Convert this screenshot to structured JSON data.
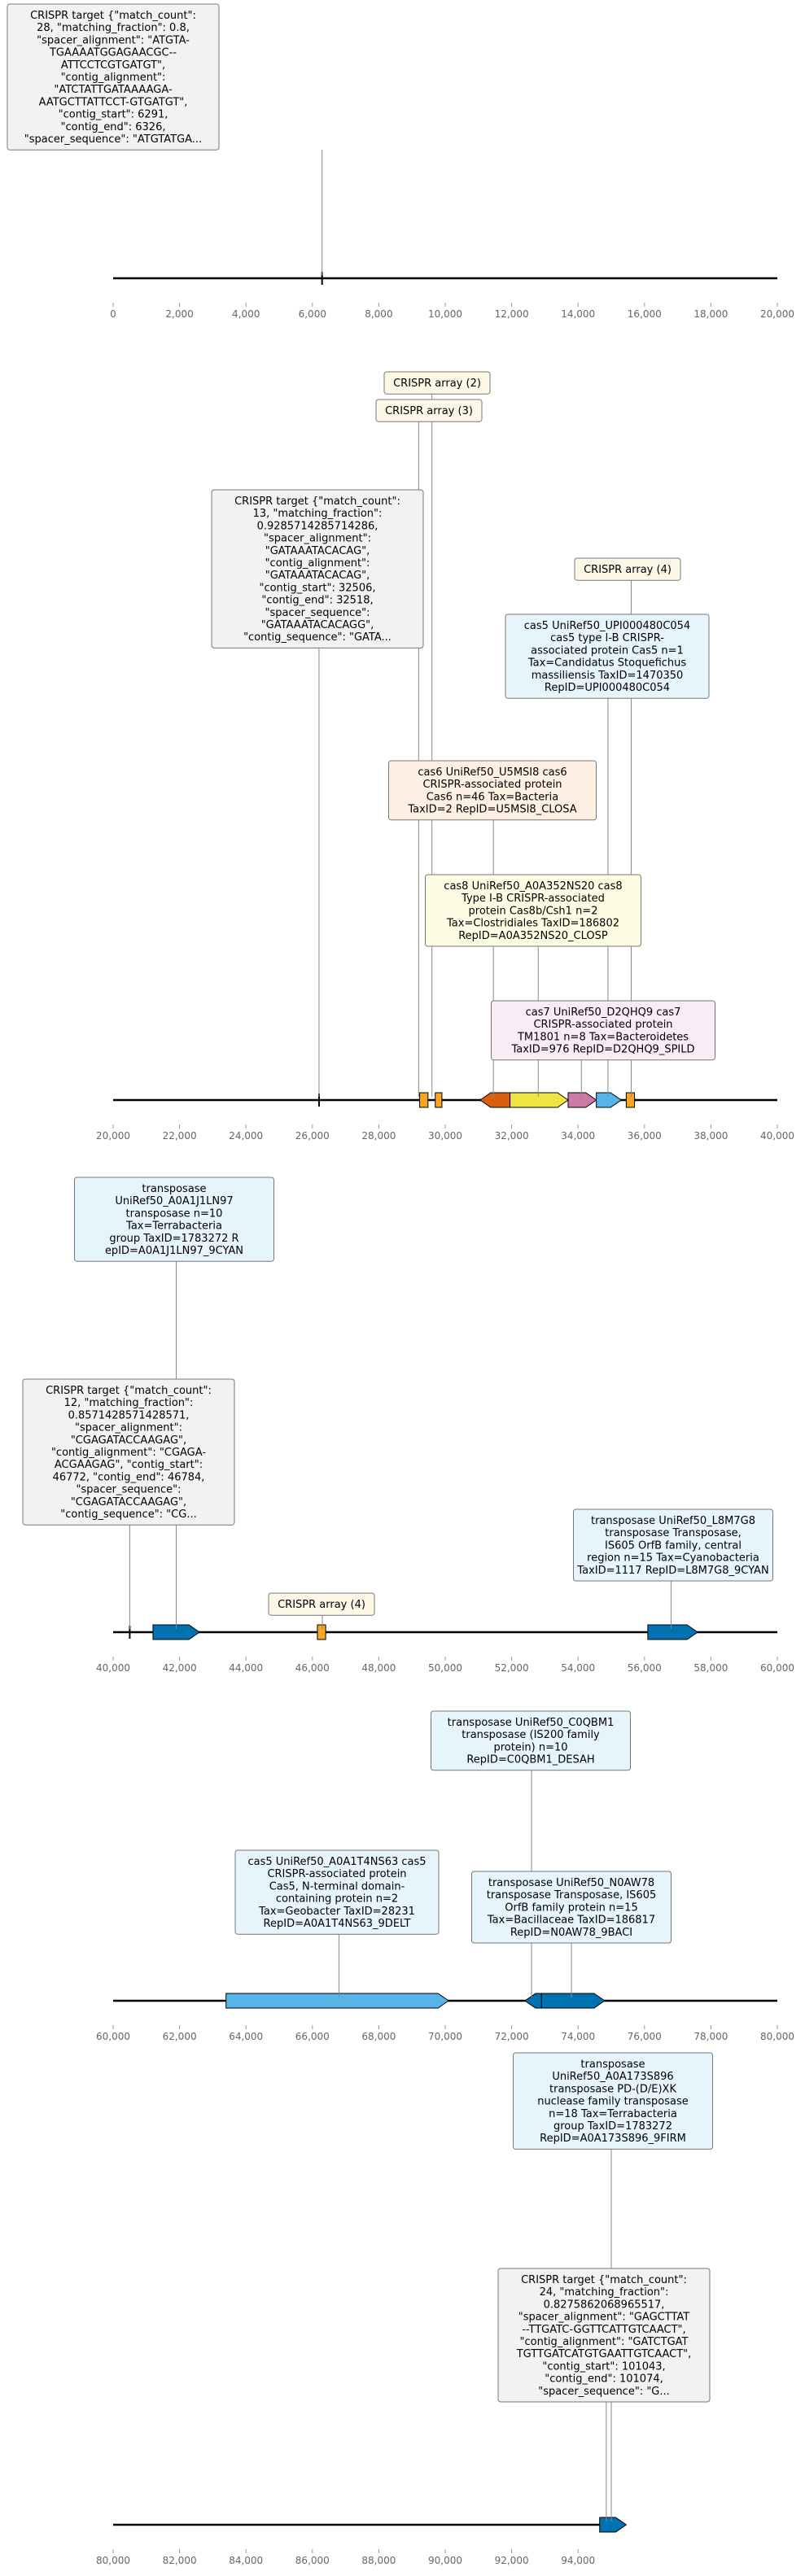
{
  "colors": {
    "crispr_target": "#f2f2f2",
    "crispr_array": "#fdf7e6",
    "cas5": "#e6f4fb",
    "cas6": "#fdf0e3",
    "cas8": "#fdfde3",
    "cas7": "#f9ecf4",
    "transposase": "#e6f4fb",
    "gene_orange": "#f5a623",
    "gene_darkorange": "#d95f0e",
    "gene_yellow": "#f0e442",
    "gene_pink": "#cc79a7",
    "gene_lightblue": "#56b4e9",
    "gene_blue": "#0072b2"
  },
  "tracks": [
    {
      "ticks": [
        "0",
        "2,000",
        "4,000",
        "6,000",
        "8,000",
        "10,000",
        "12,000",
        "14,000",
        "16,000",
        "18,000",
        "20,000"
      ],
      "features": [
        {
          "kind": "mark",
          "pos": 6291,
          "name": "crispr-target-mark"
        }
      ],
      "labels": [
        {
          "kind": "crispr_target",
          "anchor": 6291,
          "lines": [
            "CRISPR target {\"match_count\":",
            "28, \"matching_fraction\": 0.8,",
            "\"spacer_alignment\": \"ATGTA-",
            "TGAAAATGGAGAACGC--",
            "ATTCCTCGTGATGT\",",
            "\"contig_alignment\":",
            "\"ATCTATTGATAAAAGA-",
            "AATGCTTATTCCT-GTGATGT\",",
            "\"contig_start\": 6291,",
            "\"contig_end\": 6326,",
            "\"spacer_sequence\": \"ATGTATGA..."
          ]
        }
      ]
    },
    {
      "ticks": [
        "20,000",
        "22,000",
        "24,000",
        "26,000",
        "28,000",
        "30,000",
        "32,000",
        "34,000",
        "36,000",
        "38,000",
        "40,000"
      ],
      "features": [
        {
          "kind": "mark",
          "pos": 26200,
          "name": "crispr-target-mark"
        },
        {
          "kind": "array",
          "start": 29230,
          "end": 29480,
          "color": "gene_orange"
        },
        {
          "kind": "array",
          "start": 29700,
          "end": 29900,
          "color": "gene_orange"
        },
        {
          "kind": "gene",
          "start": 31050,
          "end": 31950,
          "strand": -1,
          "color": "gene_darkorange"
        },
        {
          "kind": "gene",
          "start": 31950,
          "end": 33700,
          "strand": 1,
          "color": "gene_yellow"
        },
        {
          "kind": "gene",
          "start": 33700,
          "end": 34550,
          "strand": 1,
          "color": "gene_pink"
        },
        {
          "kind": "gene",
          "start": 34550,
          "end": 35300,
          "strand": 1,
          "color": "gene_lightblue"
        },
        {
          "kind": "array",
          "start": 35450,
          "end": 35700,
          "color": "gene_orange"
        }
      ],
      "labels": [
        {
          "kind": "crispr_array",
          "anchor": 29600,
          "lines": [
            "CRISPR array (2)"
          ]
        },
        {
          "kind": "crispr_array",
          "anchor": 29200,
          "lines": [
            "CRISPR array (3)"
          ]
        },
        {
          "kind": "crispr_target",
          "anchor": 26200,
          "lines": [
            "CRISPR target {\"match_count\":",
            "13, \"matching_fraction\":",
            "0.9285714285714286,",
            "\"spacer_alignment\":",
            "\"GATAAATACACAG\",",
            "\"contig_alignment\":",
            "\"GATAAATACACAG\",",
            "\"contig_start\": 32506,",
            "\"contig_end\": 32518,",
            "\"spacer_sequence\":",
            "\"GATAAATACACAGG\",",
            "\"contig_sequence\": \"GATA..."
          ]
        },
        {
          "kind": "crispr_array",
          "anchor": 35600,
          "lines": [
            "CRISPR array (4)"
          ]
        },
        {
          "kind": "cas5",
          "anchor": 34900,
          "lines": [
            "cas5 UniRef50_UPI000480C054",
            "cas5 type I-B CRISPR-",
            "associated protein Cas5 n=1",
            "Tax=Candidatus Stoquefichus",
            "massiliensis TaxID=1470350",
            "RepID=UPI000480C054"
          ]
        },
        {
          "kind": "cas6",
          "anchor": 31450,
          "lines": [
            "cas6 UniRef50_U5MSI8 cas6",
            "CRISPR-associated protein",
            "Cas6 n=46 Tax=Bacteria",
            "TaxID=2 RepID=U5MSI8_CLOSA"
          ]
        },
        {
          "kind": "cas8",
          "anchor": 32800,
          "lines": [
            "cas8 UniRef50_A0A352NS20 cas8",
            "Type I-B CRISPR-associated",
            "protein Cas8b/Csh1 n=2",
            "Tax=Clostridiales TaxID=186802",
            "RepID=A0A352NS20_CLOSP"
          ]
        },
        {
          "kind": "cas7",
          "anchor": 34100,
          "lines": [
            "cas7 UniRef50_D2QHQ9 cas7",
            "CRISPR-associated protein",
            "TM1801 n=8 Tax=Bacteroidetes",
            "TaxID=976 RepID=D2QHQ9_SPILD"
          ]
        }
      ]
    },
    {
      "ticks": [
        "40,000",
        "42,000",
        "44,000",
        "46,000",
        "48,000",
        "50,000",
        "52,000",
        "54,000",
        "56,000",
        "58,000",
        "60,000"
      ],
      "features": [
        {
          "kind": "mark",
          "pos": 40500,
          "name": "crispr-target-mark"
        },
        {
          "kind": "gene",
          "start": 41200,
          "end": 42600,
          "strand": 1,
          "color": "gene_blue"
        },
        {
          "kind": "array",
          "start": 46150,
          "end": 46400,
          "color": "gene_orange"
        },
        {
          "kind": "gene",
          "start": 56100,
          "end": 57600,
          "strand": 1,
          "color": "gene_blue"
        }
      ],
      "labels": [
        {
          "kind": "transposase",
          "anchor": 41900,
          "lines": [
            "transposase",
            "UniRef50_A0A1J1LN97",
            "transposase n=10",
            "Tax=Terrabacteria",
            "group TaxID=1783272 R",
            "epID=A0A1J1LN97_9CYAN"
          ]
        },
        {
          "kind": "crispr_target",
          "anchor": 40500,
          "lines": [
            "CRISPR target {\"match_count\":",
            "12, \"matching_fraction\":",
            "0.8571428571428571,",
            "\"spacer_alignment\":",
            "\"CGAGATACCAAGAG\",",
            "\"contig_alignment\": \"CGAGA-",
            "ACGAAGAG\", \"contig_start\":",
            "46772, \"contig_end\": 46784,",
            "\"spacer_sequence\":",
            "\"CGAGATACCAAGAG\",",
            "\"contig_sequence\": \"CG..."
          ]
        },
        {
          "kind": "transposase",
          "anchor": 56800,
          "lines": [
            "transposase UniRef50_L8M7G8",
            "transposase Transposase,",
            "IS605 OrfB family, central",
            "region n=15 Tax=Cyanobacteria",
            "TaxID=1117 RepID=L8M7G8_9CYAN"
          ]
        },
        {
          "kind": "crispr_array",
          "anchor": 46300,
          "lines": [
            "CRISPR array (4)"
          ]
        }
      ]
    },
    {
      "ticks": [
        "60,000",
        "62,000",
        "64,000",
        "66,000",
        "68,000",
        "70,000",
        "72,000",
        "74,000",
        "76,000",
        "78,000",
        "80,000"
      ],
      "features": [
        {
          "kind": "gene",
          "start": 63400,
          "end": 70100,
          "strand": 1,
          "color": "gene_lightblue"
        },
        {
          "kind": "gene",
          "start": 72400,
          "end": 72900,
          "strand": -1,
          "color": "gene_blue"
        },
        {
          "kind": "gene",
          "start": 72900,
          "end": 74800,
          "strand": 1,
          "color": "gene_blue"
        }
      ],
      "labels": [
        {
          "kind": "transposase",
          "anchor": 72600,
          "lines": [
            "transposase UniRef50_C0QBM1",
            "transposase (IS200 family",
            "protein) n=10",
            "RepID=C0QBM1_DESAH"
          ]
        },
        {
          "kind": "cas5",
          "anchor": 66800,
          "lines": [
            "cas5 UniRef50_A0A1T4NS63 cas5",
            "CRISPR-associated protein",
            "Cas5, N-terminal domain-",
            "containing protein n=2",
            "Tax=Geobacter TaxID=28231",
            "RepID=A0A1T4NS63_9DELT"
          ]
        },
        {
          "kind": "transposase",
          "anchor": 73800,
          "lines": [
            "transposase UniRef50_N0AW78",
            "transposase Transposase, IS605",
            "OrfB family protein n=15",
            "Tax=Bacillaceae TaxID=186817",
            "RepID=N0AW78_9BACI"
          ]
        }
      ]
    },
    {
      "ticks": [
        "80,000",
        "82,000",
        "84,000",
        "86,000",
        "88,000",
        "90,000",
        "92,000",
        "94,000"
      ],
      "features": [
        {
          "kind": "gene",
          "start": 94650,
          "end": 95450,
          "strand": 1,
          "color": "gene_blue"
        }
      ],
      "labels": [
        {
          "kind": "transposase",
          "anchor": 95000,
          "lines": [
            "transposase",
            "UniRef50_A0A173S896",
            "transposase PD-(D/E)XK",
            "nuclease family transposase",
            "n=18 Tax=Terrabacteria",
            "group TaxID=1783272",
            "RepID=A0A173S896_9FIRM"
          ]
        },
        {
          "kind": "crispr_target",
          "anchor": 94850,
          "lines": [
            "CRISPR target {\"match_count\":",
            "24, \"matching_fraction\":",
            "0.8275862068965517,",
            "\"spacer_alignment\": \"GAGCTTAT",
            "--TTGATC-GGTTCATTGTCAACT\",",
            "\"contig_alignment\": \"GATCTGAT",
            "TGTTGATCATGTGAATTGTCAACT\",",
            "\"contig_start\": 101043,",
            "\"contig_end\": 101074,",
            "\"spacer_sequence\": \"G..."
          ]
        }
      ]
    }
  ]
}
